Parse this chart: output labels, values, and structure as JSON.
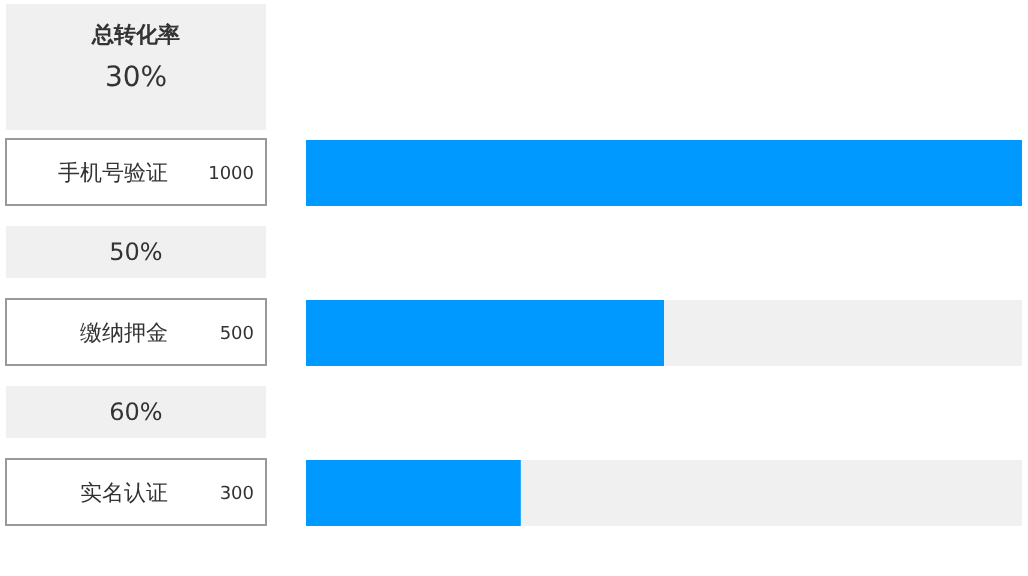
{
  "chart_data": {
    "type": "bar",
    "orientation": "horizontal",
    "title": "总转化率",
    "subtitle": "30%",
    "categories": [
      "手机号验证",
      "缴纳押金",
      "实名认证"
    ],
    "values": [
      1000,
      500,
      300
    ],
    "color": "#0099ff",
    "data_labels": true,
    "annotations": [
      "50%",
      "60%"
    ]
  }
}
